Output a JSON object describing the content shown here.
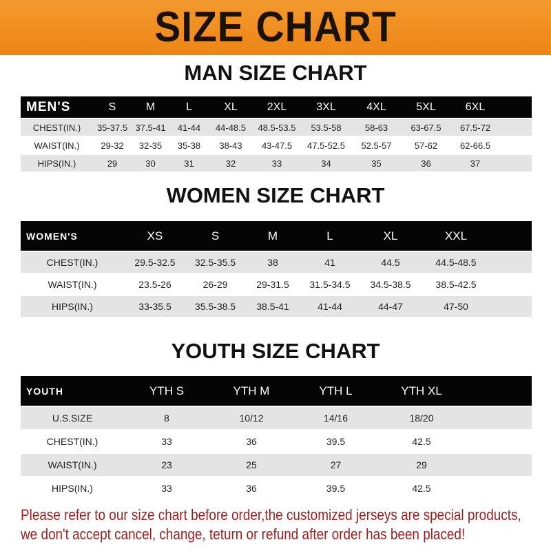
{
  "banner_title": "SIZE CHART",
  "colors": {
    "banner": "#f08a1c",
    "header_row": "#050505",
    "alt_row": "#e4e4e4",
    "notice_text": "#9b1f1f"
  },
  "men": {
    "title": "MAN SIZE CHART",
    "header_label": "MEN'S",
    "sizes": [
      "S",
      "M",
      "L",
      "XL",
      "2XL",
      "3XL",
      "4XL",
      "5XL",
      "6XL"
    ],
    "rows": [
      {
        "label": "CHEST(IN.)",
        "values": [
          "35-37.5",
          "37.5-41",
          "41-44",
          "44-48.5",
          "48.5-53.5",
          "53.5-58",
          "58-63",
          "63-67.5",
          "67.5-72"
        ]
      },
      {
        "label": "WAIST(IN.)",
        "values": [
          "29-32",
          "32-35",
          "35-38",
          "38-43",
          "43-47.5",
          "47.5-52.5",
          "52.5-57",
          "57-62",
          "62-66.5"
        ]
      },
      {
        "label": "HIPS(IN.)",
        "values": [
          "29",
          "30",
          "31",
          "32",
          "33",
          "34",
          "35",
          "36",
          "37"
        ]
      }
    ]
  },
  "women": {
    "title": "WOMEN SIZE CHART",
    "header_label": "WOMEN'S",
    "sizes": [
      "XS",
      "S",
      "M",
      "L",
      "XL",
      "XXL"
    ],
    "rows": [
      {
        "label": "CHEST(IN.)",
        "values": [
          "29.5-32.5",
          "32.5-35.5",
          "38",
          "41",
          "44.5",
          "44.5-48.5"
        ]
      },
      {
        "label": "WAIST(IN.)",
        "values": [
          "23.5-26",
          "26-29",
          "29-31.5",
          "31.5-34.5",
          "34.5-38.5",
          "38.5-42.5"
        ]
      },
      {
        "label": "HIPS(IN.)",
        "values": [
          "33-35.5",
          "35.5-38.5",
          "38.5-41",
          "41-44",
          "44-47",
          "47-50"
        ]
      }
    ]
  },
  "youth": {
    "title": "YOUTH SIZE CHART",
    "header_label": "YOUTH",
    "sizes": [
      "YTH S",
      "YTH M",
      "YTH L",
      "YTH XL"
    ],
    "rows": [
      {
        "label": "U.S.SIZE",
        "values": [
          "8",
          "10/12",
          "14/16",
          "18/20"
        ]
      },
      {
        "label": "CHEST(IN.)",
        "values": [
          "33",
          "36",
          "39.5",
          "42.5"
        ]
      },
      {
        "label": "WAIST(IN.)",
        "values": [
          "23",
          "25",
          "27",
          "29"
        ]
      },
      {
        "label": "HIPS(IN.)",
        "values": [
          "33",
          "36",
          "39.5",
          "42.5"
        ]
      }
    ]
  },
  "notice": {
    "line1": "Please refer to our size chart before order,the customized jerseys are special products,",
    "line2": "we don't accept cancel, change, teturn or refund after order has been placed!"
  }
}
